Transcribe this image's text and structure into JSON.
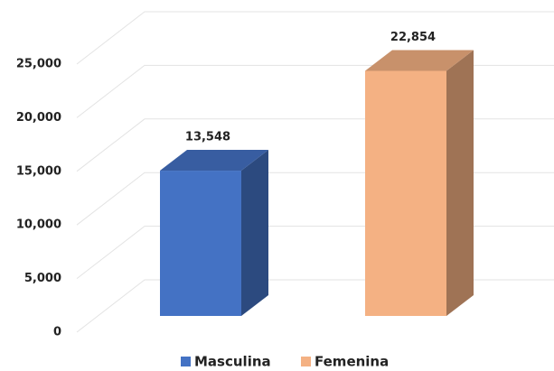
{
  "chart_data": {
    "type": "bar3d",
    "series": [
      {
        "name": "Masculina",
        "color": "#4472c4",
        "values": [
          13548
        ],
        "value_labels": [
          "13,548"
        ]
      },
      {
        "name": "Femenina",
        "color": "#f4b183",
        "values": [
          22854
        ],
        "value_labels": [
          "22,854"
        ]
      }
    ],
    "ylim": [
      0,
      25000
    ],
    "yticks": [
      0,
      {
        "value": 5000,
        "label": "5,000"
      },
      {
        "value": 10000,
        "label": "10,000"
      },
      {
        "value": 15000,
        "label": "15,000"
      },
      {
        "value": 20000,
        "label": "20,000"
      },
      {
        "value": 25000,
        "label": "25,000"
      }
    ],
    "grid": true,
    "legend": "bottom"
  }
}
